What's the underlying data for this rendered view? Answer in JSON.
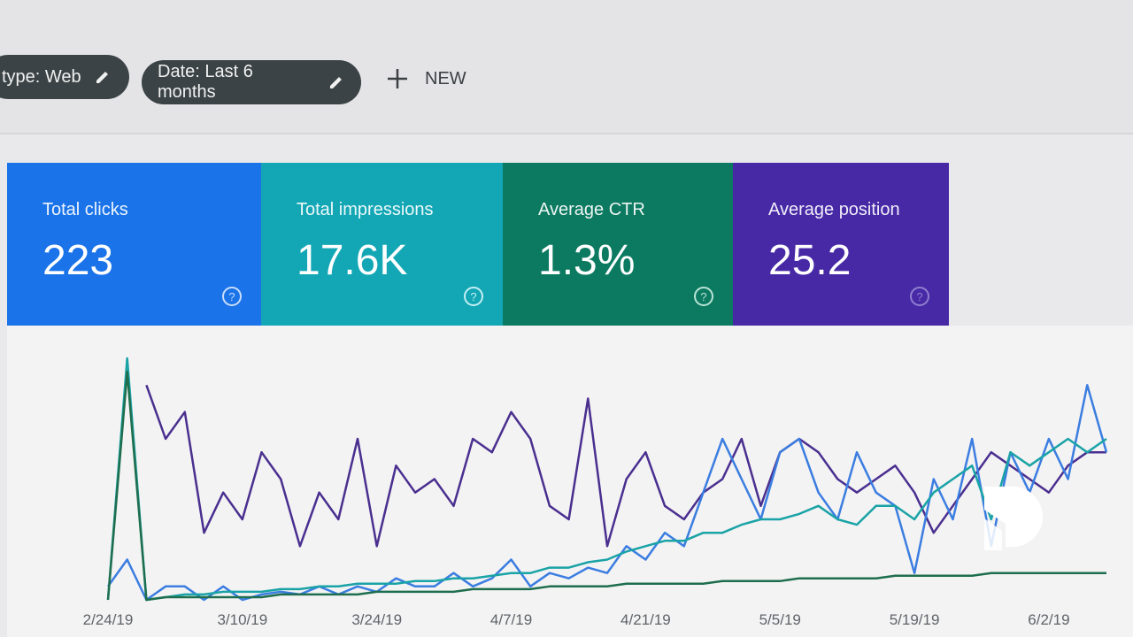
{
  "filters": [
    {
      "label": "type: Web"
    },
    {
      "label": "Date: Last 6 months"
    }
  ],
  "new_button": "NEW",
  "metrics": [
    {
      "label": "Total clicks",
      "value": "223"
    },
    {
      "label": "Total impressions",
      "value": "17.6K"
    },
    {
      "label": "Average CTR",
      "value": "1.3%"
    },
    {
      "label": "Average position",
      "value": "25.2"
    }
  ],
  "chart_data": {
    "type": "line",
    "categories": [
      "2/24/19",
      null,
      null,
      null,
      null,
      null,
      null,
      "3/10/19",
      null,
      null,
      null,
      null,
      null,
      null,
      "3/24/19",
      null,
      null,
      null,
      null,
      null,
      null,
      "4/7/19",
      null,
      null,
      null,
      null,
      null,
      null,
      "4/21/19",
      null,
      null,
      null,
      null,
      null,
      null,
      "5/5/19",
      null,
      null,
      null,
      null,
      null,
      null,
      "5/19/19",
      null,
      null,
      null,
      null,
      null,
      null,
      "6/2/19",
      null,
      null,
      null
    ],
    "series": [
      {
        "color": "#4a2f8f",
        "values": [
          null,
          null,
          80,
          60,
          70,
          25,
          40,
          30,
          55,
          45,
          20,
          40,
          30,
          60,
          20,
          50,
          40,
          45,
          35,
          60,
          55,
          70,
          60,
          35,
          30,
          75,
          20,
          45,
          55,
          35,
          30,
          40,
          45,
          60,
          35,
          55,
          60,
          55,
          45,
          40,
          45,
          50,
          40,
          25,
          35,
          45,
          55,
          50,
          45,
          40,
          50,
          55,
          55
        ]
      },
      {
        "color": "#3b7de0",
        "values": [
          5,
          15,
          0,
          5,
          5,
          0,
          5,
          0,
          2,
          3,
          2,
          5,
          2,
          5,
          3,
          8,
          5,
          5,
          10,
          5,
          8,
          15,
          5,
          10,
          8,
          12,
          10,
          20,
          15,
          25,
          20,
          40,
          60,
          45,
          30,
          55,
          60,
          40,
          30,
          55,
          40,
          35,
          10,
          45,
          30,
          60,
          20,
          55,
          40,
          60,
          45,
          80,
          55
        ]
      },
      {
        "color": "#1aa3a6",
        "values": [
          0,
          90,
          0,
          1,
          2,
          2,
          3,
          3,
          3,
          4,
          4,
          5,
          5,
          6,
          6,
          6,
          7,
          7,
          8,
          8,
          9,
          10,
          10,
          12,
          12,
          14,
          15,
          18,
          20,
          22,
          22,
          25,
          25,
          28,
          30,
          30,
          32,
          35,
          30,
          28,
          35,
          35,
          30,
          40,
          45,
          50,
          30,
          55,
          50,
          55,
          60,
          55,
          60
        ]
      },
      {
        "color": "#1e6e4e",
        "values": [
          0,
          85,
          0,
          1,
          1,
          1,
          1,
          1,
          1,
          2,
          2,
          2,
          2,
          2,
          3,
          3,
          3,
          3,
          3,
          4,
          4,
          4,
          4,
          5,
          5,
          5,
          5,
          6,
          6,
          6,
          6,
          6,
          7,
          7,
          7,
          7,
          8,
          8,
          8,
          8,
          8,
          9,
          9,
          9,
          9,
          9,
          10,
          10,
          10,
          10,
          10,
          10,
          10
        ]
      }
    ]
  }
}
